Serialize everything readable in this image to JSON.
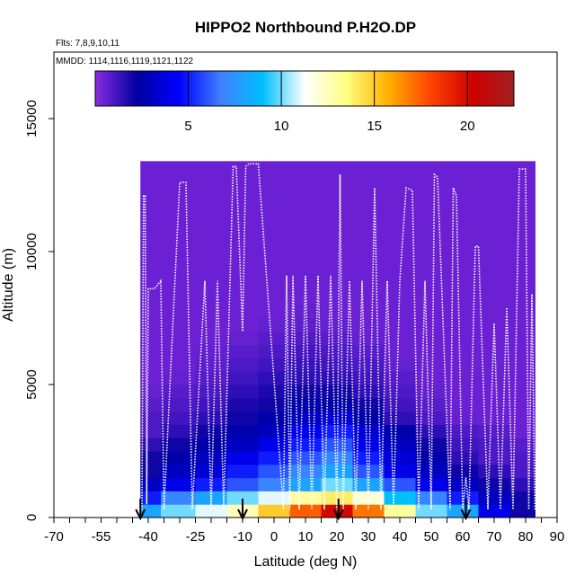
{
  "chart_data": {
    "type": "heatmap",
    "title": "HIPPO2 Northbound P.H2O.DP",
    "subtitle_flights": "Flts: 7,8,9,10,11",
    "subtitle_dates": "MMDD: 1114,1116,1119,1121,1122",
    "xlabel": "Latitude (deg N)",
    "ylabel": "Altitude (m)",
    "xlim": [
      -70,
      90
    ],
    "ylim": [
      0,
      17500
    ],
    "xticks": [
      -70,
      -55,
      -40,
      -25,
      -10,
      0,
      10,
      20,
      30,
      40,
      50,
      60,
      70,
      80,
      90
    ],
    "yticks": [
      0,
      5000,
      10000,
      15000
    ],
    "colorbar": {
      "range": [
        0,
        22.5
      ],
      "ticks": [
        5,
        10,
        15,
        20
      ],
      "colors": [
        "#8a2be2",
        "#0000a0",
        "#0000ff",
        "#3f7fff",
        "#00bfff",
        "#ffffff",
        "#ffff80",
        "#ffb000",
        "#ff4500",
        "#d00000",
        "#a02020"
      ]
    },
    "grid": false,
    "flight_markers_lat": [
      -42.5,
      -10,
      20.5,
      61
    ],
    "profile_altitude_bins_m": [
      250,
      750,
      1250,
      1750,
      2250,
      2750,
      3250,
      3750,
      4250,
      4750,
      5250,
      5750,
      6250,
      6750,
      7250,
      7750,
      8250,
      9000,
      10000,
      11000,
      12250
    ],
    "profile_latitudes": [
      -42,
      -30,
      -20,
      -10,
      0,
      10,
      20,
      30,
      40,
      50,
      60,
      70,
      80
    ],
    "profile_values": [
      [
        8,
        10,
        11,
        12.5,
        15,
        17.5,
        20,
        17,
        13,
        10,
        8,
        4,
        2
      ],
      [
        5,
        7,
        8,
        10,
        11,
        13,
        14,
        12,
        9,
        7,
        5,
        3,
        2
      ],
      [
        3,
        4,
        5,
        6,
        7,
        8,
        10,
        8,
        6,
        4,
        3,
        2,
        1.5
      ],
      [
        2,
        3,
        3.5,
        5,
        6,
        7,
        8,
        6,
        4,
        3,
        2,
        1.5,
        1
      ],
      [
        2,
        2.5,
        3,
        4,
        5,
        6,
        7,
        5,
        3.5,
        2.5,
        1.5,
        1,
        1
      ],
      [
        1.5,
        2,
        2.5,
        3,
        4,
        5,
        6,
        4,
        3,
        2,
        1.2,
        1,
        0.8
      ],
      [
        1,
        1.5,
        2,
        2.5,
        3,
        4,
        5,
        3.5,
        2.5,
        1.5,
        1,
        0.8,
        0.5
      ],
      [
        1,
        1.2,
        1.5,
        2,
        2.5,
        3,
        3.5,
        2.5,
        1.5,
        1,
        0.6,
        0.5,
        0.5
      ],
      [
        0.8,
        1,
        1.2,
        1.8,
        2,
        2.5,
        2.5,
        2,
        1.2,
        0.8,
        0.5,
        0.5,
        0.5
      ],
      [
        0.6,
        0.8,
        1,
        1.5,
        1.8,
        2,
        2,
        1.5,
        1,
        0.6,
        0.5,
        0.5,
        0.5
      ],
      [
        0.5,
        0.6,
        0.8,
        1.2,
        1.5,
        1.5,
        1.5,
        1.2,
        0.8,
        0.5,
        0.5,
        0.5,
        0.5
      ],
      [
        0.5,
        0.5,
        0.7,
        1,
        1.2,
        1.3,
        1.2,
        1,
        0.6,
        0.5,
        0.5,
        0.5,
        0.5
      ],
      [
        0.5,
        0.5,
        0.6,
        0.8,
        1,
        1.1,
        1,
        0.8,
        0.5,
        0.5,
        0.5,
        0.5,
        0.5
      ],
      [
        0.5,
        0.5,
        0.5,
        0.6,
        0.8,
        0.9,
        0.8,
        0.6,
        0.5,
        0.5,
        0.5,
        0.5,
        0.5
      ],
      [
        0.5,
        0.5,
        0.5,
        0.5,
        0.6,
        0.7,
        0.6,
        0.5,
        0.5,
        0.5,
        0.5,
        0.5,
        0.5
      ],
      [
        0.5,
        0.5,
        0.5,
        0.5,
        0.5,
        0.6,
        0.5,
        0.5,
        0.5,
        0.5,
        0.5,
        0.5,
        0.5
      ],
      [
        0.5,
        0.5,
        0.5,
        0.5,
        0.5,
        0.5,
        0.5,
        0.5,
        0.5,
        0.5,
        0.5,
        0.5,
        0.5
      ],
      [
        0.5,
        0.5,
        0.5,
        0.5,
        0.5,
        0.5,
        0.5,
        0.5,
        0.5,
        0.5,
        0.5,
        0.5,
        0.5
      ],
      [
        0.5,
        0.5,
        0.5,
        0.5,
        0.5,
        0.5,
        0.5,
        0.5,
        0.5,
        0.5,
        0.5,
        0.5,
        0.5
      ],
      [
        0.5,
        0.5,
        0.5,
        0.5,
        0.5,
        0.5,
        0.5,
        0.5,
        0.5,
        0.5,
        0.5,
        0.5,
        0.5
      ],
      [
        0.5,
        0.5,
        0.5,
        0.5,
        0.5,
        0.5,
        0.5,
        0.5,
        0.5,
        0.5,
        0.5,
        0.5,
        0.5
      ]
    ],
    "flight_track": {
      "lat": [
        -42,
        -41.5,
        -41,
        -40.5,
        -40,
        -38,
        -36,
        -35,
        -30,
        -28,
        -26,
        -22,
        -20,
        -18,
        -16,
        -13,
        -12,
        -10,
        -9,
        -8,
        -5,
        3,
        4,
        5,
        6,
        8,
        10,
        12,
        14,
        16,
        18,
        20,
        21,
        22,
        24,
        26,
        28,
        30,
        32,
        34,
        36,
        38,
        40,
        42,
        44,
        46,
        48,
        50,
        51,
        52,
        56,
        57,
        58,
        60,
        61,
        62,
        64,
        65,
        68,
        70,
        72,
        74,
        76,
        78,
        80,
        81,
        82,
        83
      ],
      "alt": [
        300,
        12100,
        12100,
        500,
        8600,
        8600,
        8900,
        300,
        12600,
        12600,
        300,
        8900,
        300,
        8900,
        300,
        13200,
        13200,
        7000,
        13200,
        13300,
        13300,
        300,
        9100,
        300,
        9100,
        300,
        9100,
        300,
        9100,
        300,
        9100,
        300,
        12900,
        300,
        8900,
        300,
        8900,
        300,
        12400,
        300,
        8900,
        300,
        8900,
        12400,
        12300,
        300,
        8900,
        300,
        12900,
        12800,
        300,
        12400,
        12100,
        300,
        1500,
        300,
        10200,
        10200,
        300,
        7300,
        300,
        7900,
        300,
        13100,
        13100,
        300,
        8400,
        300
      ]
    }
  }
}
